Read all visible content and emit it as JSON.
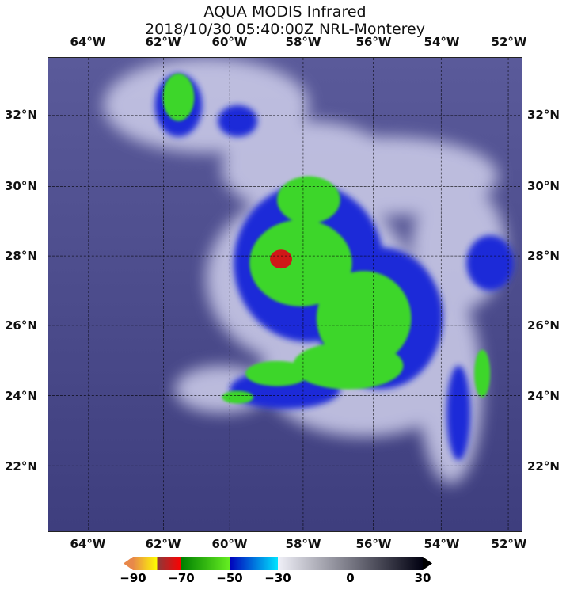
{
  "title": {
    "line1": "AQUA MODIS Infrared",
    "line2": "2018/10/30 05:40:00Z NRL-Monterey"
  },
  "longitude_labels": [
    "64°W",
    "62°W",
    "60°W",
    "58°W",
    "56°W",
    "54°W",
    "52°W"
  ],
  "latitude_labels": [
    "32°N",
    "30°N",
    "28°N",
    "26°N",
    "24°N",
    "22°N"
  ],
  "colorbar": {
    "ticks": [
      "−90",
      "−70",
      "−50",
      "−30",
      "0",
      "30"
    ],
    "range": [
      -90,
      30
    ],
    "segments": [
      {
        "from": -90,
        "to": -80,
        "colors": [
          "#e8884a",
          "#ffff00"
        ]
      },
      {
        "from": -80,
        "to": -70,
        "colors": [
          "#8b3a3a",
          "#ff0000"
        ]
      },
      {
        "from": -70,
        "to": -50,
        "colors": [
          "#008000",
          "#66ee22"
        ]
      },
      {
        "from": -50,
        "to": -30,
        "colors": [
          "#0000bb",
          "#00e5ff"
        ]
      },
      {
        "from": -30,
        "to": 30,
        "colors": [
          "#f0f0f8",
          "#000010"
        ]
      }
    ]
  }
}
